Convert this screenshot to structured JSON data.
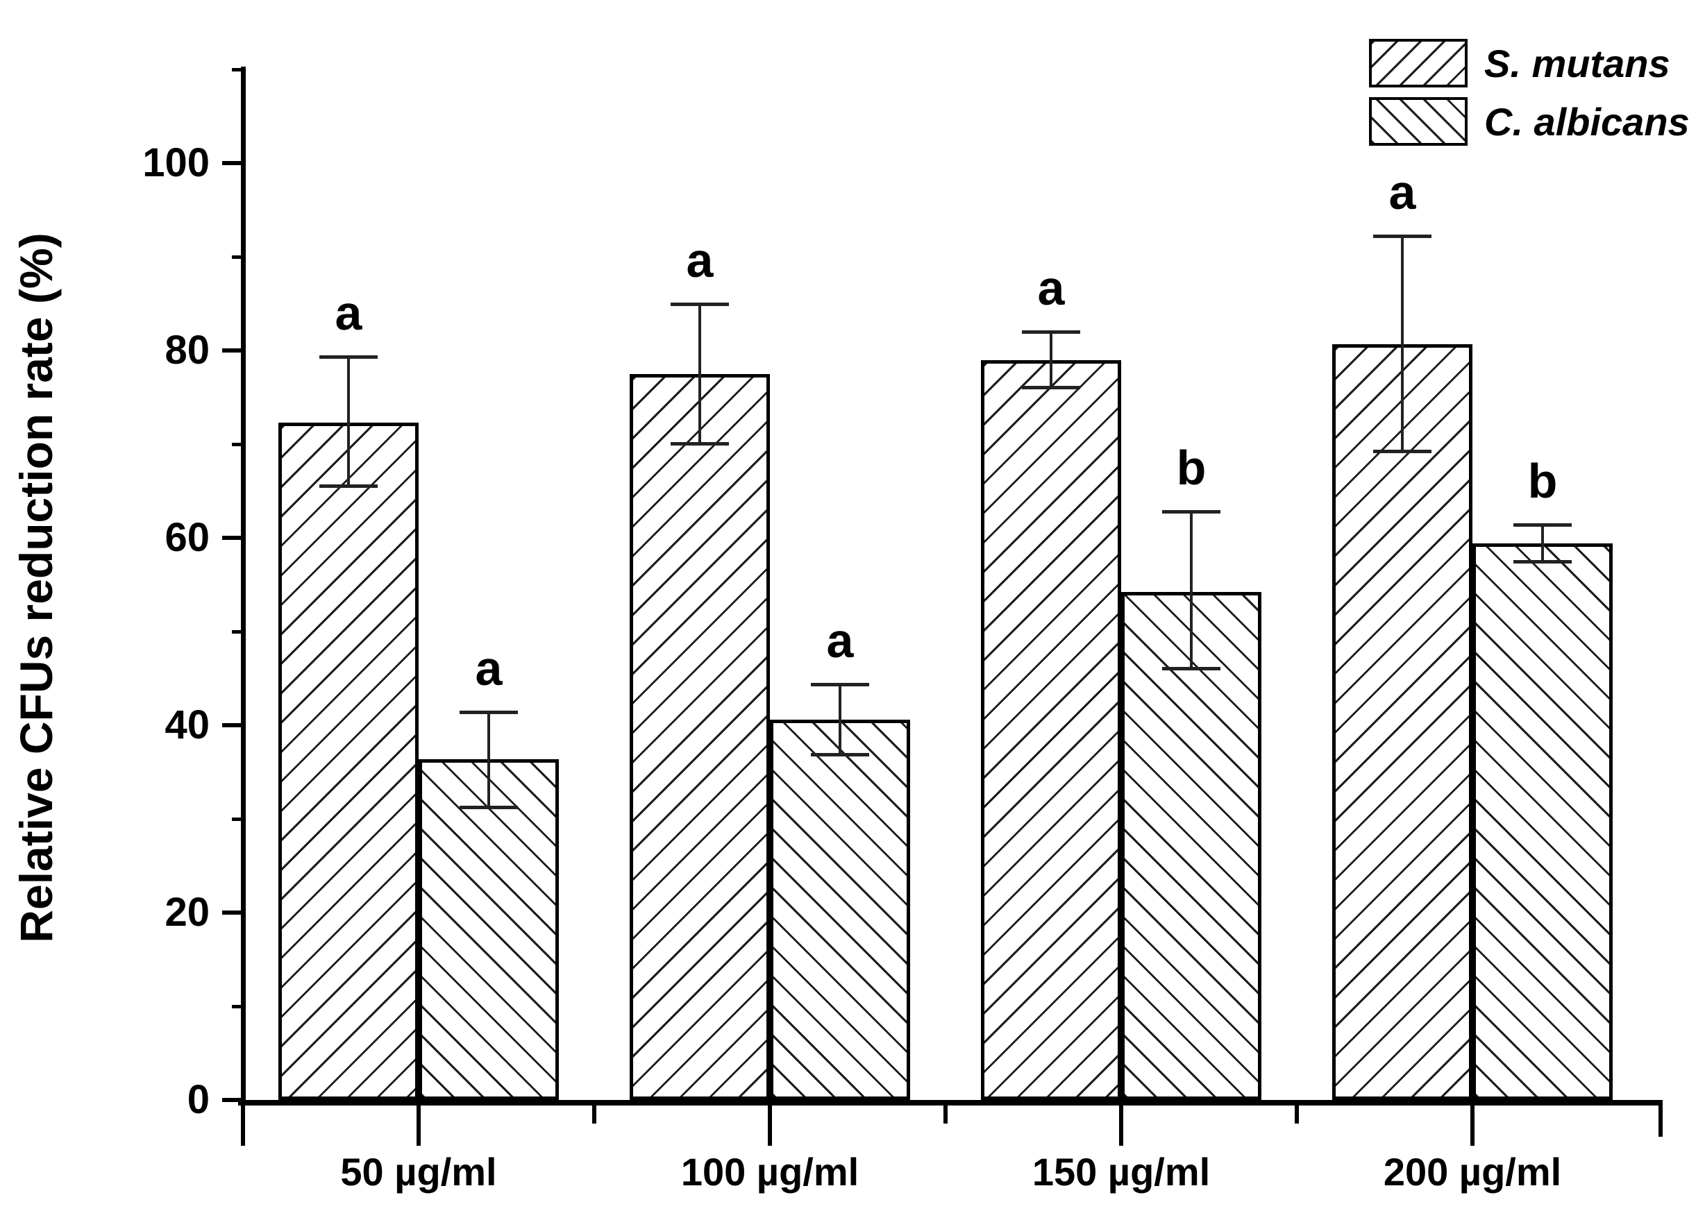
{
  "chart_data": {
    "type": "bar",
    "title": "",
    "xlabel": "",
    "ylabel": "Relative CFUs reduction rate (%)",
    "categories": [
      "50 µg/ml",
      "100 µg/ml",
      "150 µg/ml",
      "200 µg/ml"
    ],
    "series": [
      {
        "name": "S. mutans",
        "hatch": "forward-diagonal",
        "values": [
          72.3,
          77.5,
          79.0,
          80.7
        ],
        "err_plus": [
          7.0,
          7.5,
          3.0,
          11.5
        ],
        "err_minus": [
          6.8,
          7.5,
          3.0,
          11.5
        ],
        "sig_letters": [
          "a",
          "a",
          "a",
          "a"
        ]
      },
      {
        "name": "C. albicans",
        "hatch": "backward-diagonal",
        "values": [
          36.4,
          40.6,
          54.2,
          59.4
        ],
        "err_plus": [
          5.0,
          3.8,
          8.6,
          2.0
        ],
        "err_minus": [
          5.2,
          3.8,
          8.2,
          2.0
        ],
        "sig_letters": [
          "a",
          "a",
          "b",
          "b"
        ]
      }
    ],
    "ylim": [
      0,
      110
    ],
    "yticks_major": [
      0,
      20,
      40,
      60,
      80,
      100
    ],
    "yticks_minor": [
      10,
      30,
      50,
      70,
      90,
      110
    ],
    "grid": "off",
    "legend_position": "top-right",
    "bar_fill": "#ffffff",
    "line_color": "#000000"
  }
}
